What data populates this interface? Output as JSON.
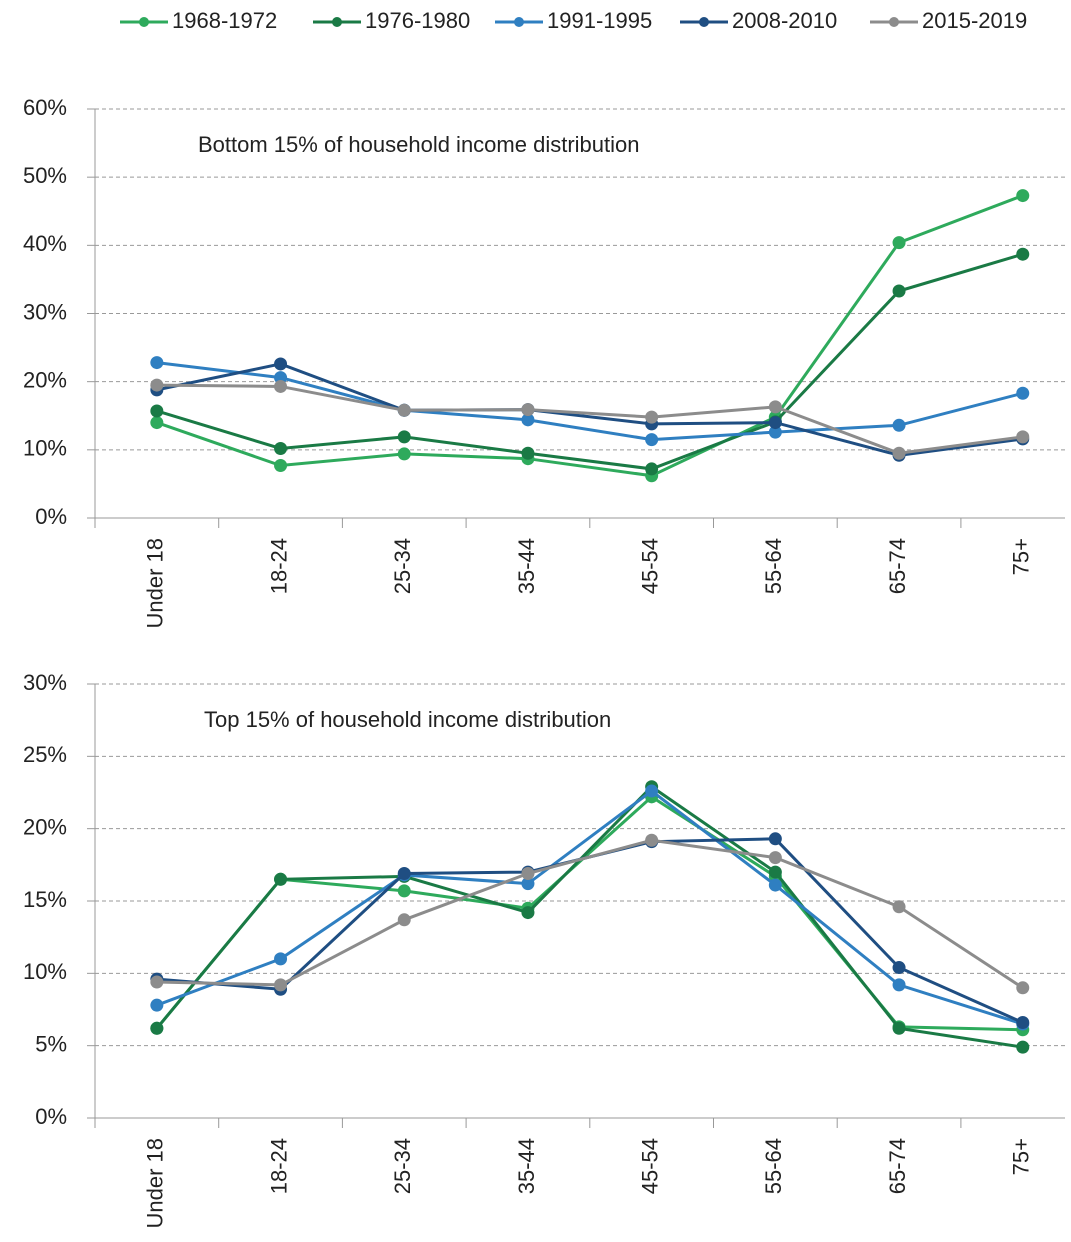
{
  "chart_data": [
    {
      "type": "line",
      "annotation": "Bottom 15% of household income distribution",
      "categories": [
        "Under 18",
        "18-24",
        "25-34",
        "35-44",
        "45-54",
        "55-64",
        "65-74",
        "75+"
      ],
      "series": [
        {
          "name": "1968-1972",
          "color": "#2eaa5c",
          "values": [
            14,
            7.7,
            9.4,
            8.7,
            6.2,
            14.8,
            40.4,
            47.3
          ]
        },
        {
          "name": "1976-1980",
          "color": "#1a7a45",
          "values": [
            15.7,
            10.2,
            11.9,
            9.5,
            7.2,
            14.1,
            33.3,
            38.7
          ]
        },
        {
          "name": "1991-1995",
          "color": "#2f7fc1",
          "values": [
            22.8,
            20.6,
            15.8,
            14.4,
            11.5,
            12.6,
            13.6,
            18.3
          ]
        },
        {
          "name": "2008-2010",
          "color": "#1f4e82",
          "values": [
            18.8,
            22.6,
            15.8,
            15.9,
            13.8,
            14.0,
            9.2,
            11.6
          ]
        },
        {
          "name": "2015-2019",
          "color": "#8c8c8c",
          "values": [
            19.5,
            19.3,
            15.8,
            15.9,
            14.8,
            16.3,
            9.5,
            11.9
          ]
        }
      ],
      "ylim": [
        0,
        60
      ],
      "yticks": [
        {
          "value": 0,
          "label": "0%"
        },
        {
          "value": 10,
          "label": "10%"
        },
        {
          "value": 20,
          "label": "20%"
        },
        {
          "value": 30,
          "label": "30%"
        },
        {
          "value": 40,
          "label": "40%"
        },
        {
          "value": 50,
          "label": "50%"
        },
        {
          "value": 60,
          "label": "60%"
        }
      ],
      "grid": true,
      "legend": "top"
    },
    {
      "type": "line",
      "annotation": "Top 15% of household income distribution",
      "categories": [
        "Under 18",
        "18-24",
        "25-34",
        "35-44",
        "45-54",
        "55-64",
        "65-74",
        "75+"
      ],
      "series": [
        {
          "color": "#2eaa5c",
          "values": [
            6.2,
            16.5,
            15.7,
            14.5,
            22.2,
            16.7,
            6.3,
            6.1
          ]
        },
        {
          "color": "#1a7a45",
          "values": [
            6.2,
            16.5,
            16.7,
            14.2,
            22.9,
            17.0,
            6.2,
            4.9
          ]
        },
        {
          "color": "#2f7fc1",
          "values": [
            7.8,
            11.0,
            16.8,
            16.2,
            22.6,
            16.1,
            9.2,
            6.5
          ]
        },
        {
          "color": "#1f4e82",
          "values": [
            9.6,
            8.9,
            16.9,
            17.0,
            19.1,
            19.3,
            10.4,
            6.6
          ]
        },
        {
          "color": "#8c8c8c",
          "values": [
            9.4,
            9.2,
            13.7,
            16.9,
            19.2,
            18.0,
            14.6,
            9.0
          ]
        }
      ],
      "ylim": [
        0,
        30
      ],
      "yticks": [
        {
          "value": 0,
          "label": "0%"
        },
        {
          "value": 5,
          "label": "5%"
        },
        {
          "value": 10,
          "label": "10%"
        },
        {
          "value": 15,
          "label": "15%"
        },
        {
          "value": 20,
          "label": "20%"
        },
        {
          "value": 25,
          "label": "25%"
        },
        {
          "value": 30,
          "label": "30%"
        }
      ],
      "grid": true
    }
  ]
}
